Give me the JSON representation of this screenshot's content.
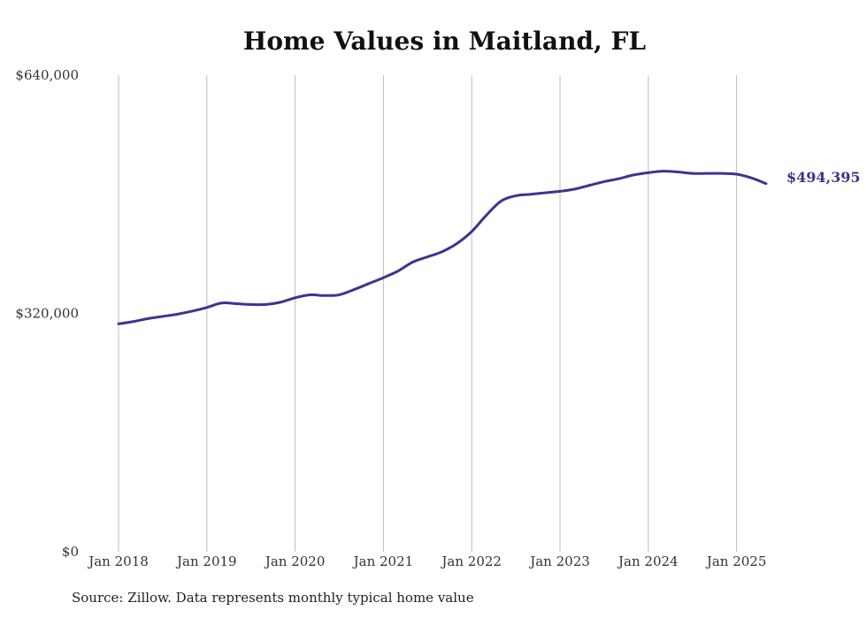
{
  "chart_data": {
    "type": "line",
    "title": "Home Values in Maitland, FL",
    "xlabel": "",
    "ylabel": "",
    "x_ticks": [
      "Jan 2018",
      "Jan 2019",
      "Jan 2020",
      "Jan 2021",
      "Jan 2022",
      "Jan 2023",
      "Jan 2024",
      "Jan 2025"
    ],
    "y_ticks": [
      "$640,000",
      "$320,000",
      "$0"
    ],
    "ylim": [
      0,
      640000
    ],
    "grid": "vertical",
    "legend": "none",
    "end_label": "$494,395",
    "series": [
      {
        "color": "#3d3490",
        "x": [
          "2018-01",
          "2018-03",
          "2018-05",
          "2018-07",
          "2018-09",
          "2018-11",
          "2019-01",
          "2019-03",
          "2019-05",
          "2019-07",
          "2019-09",
          "2019-11",
          "2020-01",
          "2020-03",
          "2020-05",
          "2020-07",
          "2020-09",
          "2020-11",
          "2021-01",
          "2021-03",
          "2021-05",
          "2021-07",
          "2021-09",
          "2021-11",
          "2022-01",
          "2022-03",
          "2022-05",
          "2022-07",
          "2022-09",
          "2022-11",
          "2023-01",
          "2023-03",
          "2023-05",
          "2023-07",
          "2023-09",
          "2023-11",
          "2024-01",
          "2024-03",
          "2024-05",
          "2024-07",
          "2024-09",
          "2024-11",
          "2025-01",
          "2025-03",
          "2025-05"
        ],
        "values": [
          306000,
          309000,
          313000,
          316000,
          319000,
          323000,
          328000,
          334000,
          333000,
          332000,
          332000,
          335000,
          341000,
          345000,
          344000,
          345000,
          352000,
          360000,
          368000,
          377000,
          389000,
          396000,
          403000,
          414000,
          430000,
          452000,
          471000,
          478000,
          480000,
          482000,
          484000,
          487000,
          492000,
          497000,
          501000,
          506000,
          509000,
          511000,
          510000,
          508000,
          508000,
          508000,
          507000,
          502000,
          494395
        ]
      }
    ]
  },
  "source_note": "Source: Zillow. Data represents monthly typical home value"
}
